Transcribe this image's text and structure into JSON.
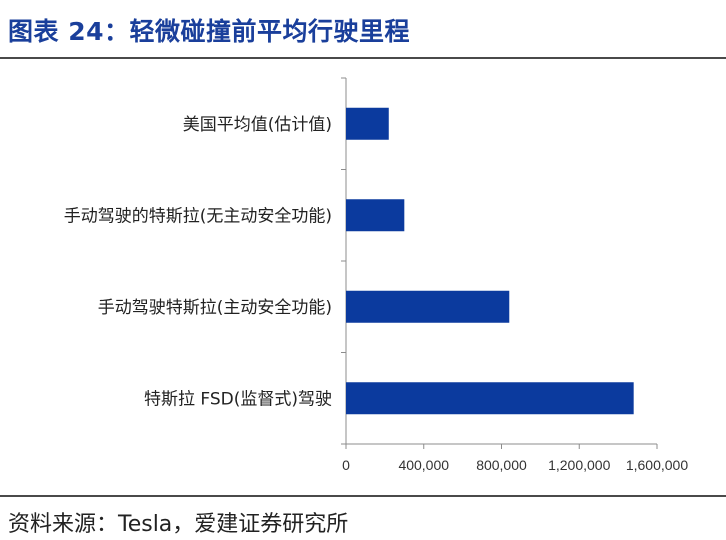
{
  "header": {
    "title": "图表 24：轻微碰撞前平均行驶里程"
  },
  "footer": {
    "source": "资料来源：Tesla，爱建证券研究所"
  },
  "colors": {
    "title": "#1a3f9b",
    "bar": "#0b3a9e",
    "axis": "#8c8c8c",
    "text": "#222222"
  },
  "chart_data": {
    "type": "bar",
    "orientation": "horizontal",
    "categories": [
      "美国平均值(估计值)",
      "手动驾驶的特斯拉(无主动安全功能)",
      "手动驾驶特斯拉(主动安全功能)",
      "特斯拉 FSD(监督式)驾驶"
    ],
    "values": [
      220000,
      300000,
      840000,
      1480000
    ],
    "xlim": [
      0,
      1600000
    ],
    "xticks": [
      0,
      400000,
      800000,
      1200000,
      1600000
    ],
    "xtick_labels": [
      "0",
      "400,000",
      "800,000",
      "1,200,000",
      "1,600,000"
    ],
    "xlabel": "",
    "ylabel": "",
    "grid": false,
    "legend": "none"
  }
}
